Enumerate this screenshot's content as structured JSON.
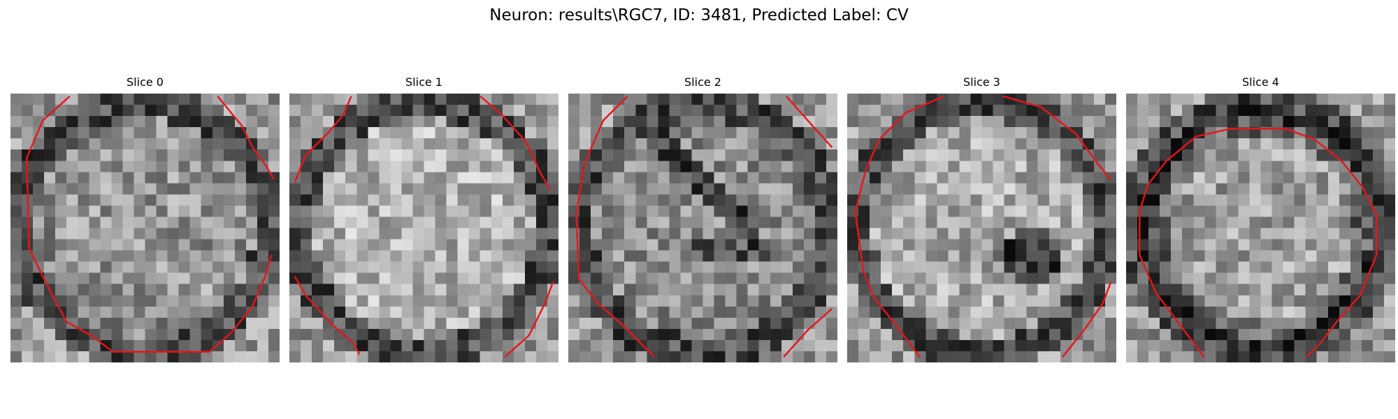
{
  "figure": {
    "title": "Neuron: results\\RGC7, ID: 3481, Predicted Label: CV"
  },
  "slices": [
    {
      "title": "Slice 0",
      "seed": 11,
      "style": "rim",
      "contour": [
        [
          0.22,
          0.01
        ],
        [
          0.12,
          0.1
        ],
        [
          0.06,
          0.24
        ],
        [
          0.07,
          0.58
        ],
        [
          0.1,
          0.64
        ],
        [
          0.16,
          0.76
        ],
        [
          0.21,
          0.85
        ],
        [
          0.3,
          0.9
        ],
        [
          0.38,
          0.96
        ],
        [
          0.74,
          0.96
        ],
        [
          0.82,
          0.89
        ],
        [
          0.9,
          0.79
        ],
        [
          0.95,
          0.67
        ],
        [
          0.97,
          0.6
        ]
      ],
      "contour2": [
        [
          0.77,
          0.01
        ],
        [
          0.86,
          0.12
        ],
        [
          0.9,
          0.2
        ],
        [
          0.95,
          0.27
        ],
        [
          0.98,
          0.32
        ]
      ]
    },
    {
      "title": "Slice 1",
      "seed": 23,
      "style": "bright",
      "contour": [
        [
          0.02,
          0.33
        ],
        [
          0.06,
          0.23
        ],
        [
          0.14,
          0.15
        ],
        [
          0.2,
          0.08
        ],
        [
          0.23,
          0.01
        ]
      ],
      "contour2": [
        [
          0.71,
          0.01
        ],
        [
          0.79,
          0.08
        ],
        [
          0.88,
          0.18
        ],
        [
          0.93,
          0.29
        ],
        [
          0.97,
          0.36
        ]
      ],
      "contour3": [
        [
          0.02,
          0.68
        ],
        [
          0.06,
          0.75
        ],
        [
          0.16,
          0.86
        ],
        [
          0.24,
          0.93
        ],
        [
          0.26,
          0.97
        ]
      ],
      "contour4": [
        [
          0.8,
          0.98
        ],
        [
          0.89,
          0.9
        ],
        [
          0.95,
          0.78
        ],
        [
          0.98,
          0.7
        ]
      ]
    },
    {
      "title": "Slice 2",
      "seed": 37,
      "style": "streak",
      "contour": [
        [
          0.22,
          0.01
        ],
        [
          0.13,
          0.1
        ],
        [
          0.06,
          0.26
        ],
        [
          0.03,
          0.45
        ],
        [
          0.04,
          0.69
        ],
        [
          0.11,
          0.78
        ],
        [
          0.2,
          0.86
        ],
        [
          0.27,
          0.93
        ],
        [
          0.32,
          0.98
        ]
      ],
      "contour2": [
        [
          0.81,
          0.01
        ],
        [
          0.89,
          0.1
        ],
        [
          0.98,
          0.2
        ]
      ],
      "contour3": [
        [
          0.8,
          0.98
        ],
        [
          0.89,
          0.88
        ],
        [
          0.98,
          0.8
        ]
      ]
    },
    {
      "title": "Slice 3",
      "seed": 53,
      "style": "dark",
      "contour": [
        [
          0.36,
          0.01
        ],
        [
          0.22,
          0.07
        ],
        [
          0.12,
          0.17
        ],
        [
          0.07,
          0.28
        ],
        [
          0.03,
          0.44
        ],
        [
          0.06,
          0.66
        ],
        [
          0.1,
          0.76
        ],
        [
          0.18,
          0.86
        ],
        [
          0.27,
          0.98
        ]
      ],
      "contour2": [
        [
          0.58,
          0.01
        ],
        [
          0.72,
          0.05
        ],
        [
          0.85,
          0.15
        ],
        [
          0.93,
          0.26
        ],
        [
          0.98,
          0.32
        ]
      ],
      "contour3": [
        [
          0.8,
          0.98
        ],
        [
          0.88,
          0.88
        ],
        [
          0.95,
          0.78
        ],
        [
          0.98,
          0.7
        ]
      ]
    },
    {
      "title": "Slice 4",
      "seed": 71,
      "style": "ring",
      "contour": [
        [
          0.29,
          0.98
        ],
        [
          0.2,
          0.86
        ],
        [
          0.11,
          0.74
        ],
        [
          0.05,
          0.6
        ],
        [
          0.05,
          0.44
        ],
        [
          0.08,
          0.34
        ],
        [
          0.15,
          0.25
        ],
        [
          0.26,
          0.16
        ],
        [
          0.39,
          0.13
        ],
        [
          0.59,
          0.13
        ],
        [
          0.7,
          0.17
        ],
        [
          0.8,
          0.25
        ],
        [
          0.88,
          0.35
        ],
        [
          0.93,
          0.45
        ],
        [
          0.93,
          0.6
        ],
        [
          0.87,
          0.75
        ],
        [
          0.79,
          0.84
        ],
        [
          0.72,
          0.93
        ],
        [
          0.67,
          0.98
        ]
      ]
    }
  ],
  "contour_color": "#e8141c"
}
